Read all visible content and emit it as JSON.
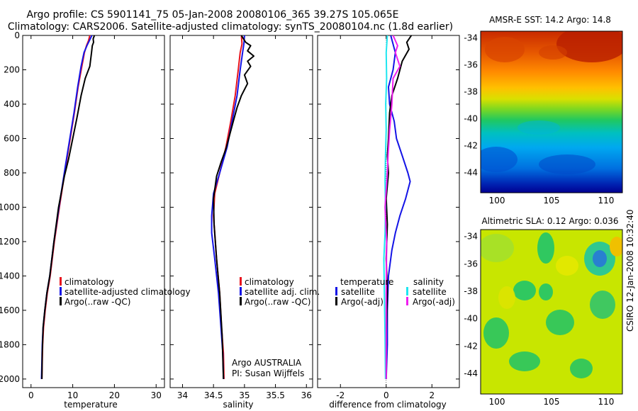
{
  "title": {
    "line1": "Argo profile: CS 5901141_75 05-Jan-2008 20080106_365 39.27S 105.065E",
    "line2": "Climatology: CARS2006. Satellite-adjusted climatology: synTS_20080104.nc (1.8d earlier)"
  },
  "colors": {
    "climatology": "#e8141e",
    "satellite": "#1414e6",
    "argo": "#000000",
    "cyan": "#1ee6f0",
    "magenta": "#f01ef0"
  },
  "side_label": "CSIRO 12-Jan-2008 10:32:40",
  "chart_data": [
    {
      "type": "line",
      "id": "temperature",
      "xlabel": "temperature",
      "xlim": [
        -2,
        32
      ],
      "ylim": [
        0,
        2050
      ],
      "y_reversed": true,
      "xticks": [
        0,
        10,
        20,
        30
      ],
      "yticks": [
        0,
        200,
        400,
        600,
        800,
        1000,
        1200,
        1400,
        1600,
        1800,
        2000
      ],
      "legend": [
        "climatology",
        "satellite-adjusted climatology",
        "Argo(..raw -QC)"
      ],
      "series": [
        {
          "name": "climatology",
          "color_key": "climatology",
          "x": [
            14.1,
            13.8,
            13.3,
            12.8,
            12.2,
            11.3,
            10.4,
            9.4,
            8.4,
            6.8,
            5.6,
            4.6,
            3.9,
            3.4,
            3.0,
            2.8,
            2.7,
            2.6
          ],
          "y": [
            0,
            30,
            60,
            100,
            180,
            300,
            450,
            600,
            750,
            1000,
            1200,
            1400,
            1500,
            1600,
            1700,
            1800,
            1900,
            2000
          ]
        },
        {
          "name": "satellite-adjusted climatology",
          "color_key": "satellite",
          "x": [
            14.6,
            14.0,
            13.4,
            12.7,
            12.0,
            11.2,
            10.3,
            9.3,
            8.3,
            6.7,
            5.5,
            4.5,
            3.8,
            3.3,
            2.9,
            2.7,
            2.6,
            2.5
          ],
          "y": [
            0,
            30,
            60,
            100,
            180,
            300,
            450,
            600,
            750,
            1000,
            1200,
            1400,
            1500,
            1600,
            1700,
            1800,
            1900,
            2000
          ]
        },
        {
          "name": "Argo(..raw -QC)",
          "color_key": "argo",
          "x": [
            15.2,
            14.9,
            15.0,
            14.7,
            14.5,
            14.1,
            13.0,
            12.0,
            11.0,
            10.0,
            9.0,
            8.0,
            6.6,
            5.5,
            4.5,
            3.8,
            3.3,
            2.9,
            2.7,
            2.6
          ],
          "y": [
            0,
            20,
            40,
            60,
            100,
            180,
            250,
            350,
            480,
            600,
            720,
            820,
            1000,
            1200,
            1400,
            1500,
            1600,
            1700,
            1850,
            2000
          ]
        }
      ]
    },
    {
      "type": "line",
      "id": "salinity",
      "xlabel": "salinity",
      "xlim": [
        33.8,
        36.1
      ],
      "ylim": [
        0,
        2050
      ],
      "y_reversed": true,
      "xticks": [
        34,
        34.5,
        35,
        35.5,
        36
      ],
      "xtick_labels": [
        "34",
        "34.5",
        "35",
        "35.5",
        "36"
      ],
      "yticks": [
        0,
        200,
        400,
        600,
        800,
        1000,
        1200,
        1400,
        1600,
        1800,
        2000
      ],
      "legend": [
        "climatology",
        "satellite adj. clim.",
        "Argo(..raw -QC)"
      ],
      "annotation": [
        "Argo AUSTRALIA",
        "PI: Susan Wijffels"
      ],
      "series": [
        {
          "name": "climatology",
          "color_key": "climatology",
          "x": [
            34.95,
            34.96,
            34.93,
            34.9,
            34.85,
            34.78,
            34.7,
            34.6,
            34.52,
            34.5,
            34.52,
            34.55,
            34.6,
            34.63,
            34.66,
            34.67
          ],
          "y": [
            0,
            50,
            100,
            200,
            350,
            500,
            650,
            800,
            920,
            1050,
            1150,
            1300,
            1500,
            1700,
            1850,
            2000
          ]
        },
        {
          "name": "satellite adj. clim.",
          "color_key": "satellite",
          "x": [
            35.0,
            34.99,
            34.97,
            34.93,
            34.88,
            34.8,
            34.72,
            34.6,
            34.5,
            34.47,
            34.47,
            34.52,
            34.58,
            34.62,
            34.65,
            34.66
          ],
          "y": [
            0,
            50,
            100,
            200,
            350,
            500,
            650,
            800,
            920,
            1050,
            1150,
            1300,
            1500,
            1700,
            1850,
            2000
          ]
        },
        {
          "name": "Argo(..raw -QC)",
          "color_key": "argo",
          "x": [
            34.95,
            35.02,
            35.1,
            35.05,
            35.15,
            35.05,
            35.1,
            35.0,
            35.05,
            34.95,
            34.88,
            34.82,
            34.76,
            34.7,
            34.62,
            34.55,
            34.5,
            34.51,
            34.55,
            34.6,
            34.64,
            34.66
          ],
          "y": [
            0,
            40,
            60,
            90,
            120,
            150,
            180,
            230,
            280,
            350,
            420,
            500,
            580,
            660,
            740,
            820,
            950,
            1100,
            1300,
            1500,
            1750,
            2000
          ]
        }
      ]
    },
    {
      "type": "line",
      "id": "difference",
      "xlabel": "difference from climatology",
      "xlim": [
        -3,
        3.2
      ],
      "ylim": [
        0,
        2050
      ],
      "y_reversed": true,
      "xticks": [
        -2,
        0,
        2
      ],
      "yticks": [
        0,
        200,
        400,
        600,
        800,
        1000,
        1200,
        1400,
        1600,
        1800,
        2000
      ],
      "legend_left": {
        "title": "temperature",
        "items": [
          "satellite",
          "Argo(-adj)"
        ]
      },
      "legend_right": {
        "title": "salinity",
        "items": [
          "satellite",
          "Argo(-adj)"
        ]
      },
      "series": [
        {
          "name": "temperature satellite",
          "color_key": "satellite",
          "x": [
            0.2,
            0.4,
            0.3,
            0.1,
            0.15,
            0.35,
            0.45,
            0.7,
            0.95,
            1.05,
            0.85,
            0.6,
            0.4,
            0.25,
            0.1,
            0.05,
            0.05,
            0.0
          ],
          "y": [
            0,
            100,
            200,
            300,
            400,
            500,
            600,
            700,
            800,
            850,
            950,
            1050,
            1150,
            1250,
            1400,
            1600,
            1800,
            2000
          ]
        },
        {
          "name": "temperature Argo(-adj)",
          "color_key": "argo",
          "x": [
            1.1,
            0.9,
            1.0,
            0.7,
            0.5,
            0.25,
            0.15,
            0.1,
            0.05,
            0.1,
            0.0,
            0.05,
            0.0,
            0.05,
            0.0,
            0.0
          ],
          "y": [
            0,
            40,
            80,
            150,
            250,
            350,
            450,
            600,
            700,
            800,
            950,
            1100,
            1300,
            1500,
            1750,
            2000
          ]
        },
        {
          "name": "salinity satellite",
          "color_key": "cyan",
          "x": [
            0.05,
            0.0,
            0.02,
            -0.02,
            0.0,
            -0.03,
            -0.05,
            -0.03,
            -0.05,
            -0.1,
            -0.08,
            -0.05,
            -0.03
          ],
          "y": [
            0,
            100,
            250,
            400,
            550,
            700,
            850,
            1000,
            1150,
            1300,
            1500,
            1750,
            2000
          ]
        },
        {
          "name": "salinity Argo(-adj)",
          "color_key": "magenta",
          "x": [
            0.3,
            0.5,
            0.4,
            0.6,
            0.3,
            0.25,
            0.15,
            0.08,
            0.05,
            0.0,
            -0.05,
            0.02,
            0.0,
            0.0
          ],
          "y": [
            0,
            60,
            100,
            180,
            250,
            400,
            550,
            700,
            800,
            900,
            1000,
            1200,
            1500,
            2000
          ]
        }
      ]
    },
    {
      "type": "heatmap",
      "id": "sst_map",
      "title": "AMSR-E SST: 14.2 Argo: 14.8",
      "xlim": [
        98.5,
        111.5
      ],
      "ylim": [
        -45.5,
        -33.5
      ],
      "xticks": [
        100,
        105,
        110
      ],
      "yticks": [
        -34,
        -36,
        -38,
        -40,
        -42,
        -44
      ],
      "marker": {
        "x": 105.065,
        "y": -39.27
      }
    },
    {
      "type": "heatmap",
      "id": "sla_map",
      "title": "Altimetric SLA: 0.12 Argo: 0.036",
      "xlim": [
        98.5,
        111.5
      ],
      "ylim": [
        -45.5,
        -33.5
      ],
      "xticks": [
        100,
        105,
        110
      ],
      "yticks": [
        -34,
        -36,
        -38,
        -40,
        -42,
        -44
      ],
      "marker": {
        "x": 105.065,
        "y": -39.27
      }
    }
  ]
}
